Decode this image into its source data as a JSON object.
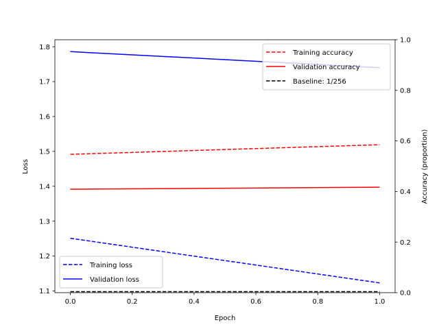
{
  "chart_data": {
    "type": "line",
    "title": "",
    "xlabel": "Epoch",
    "ylabel_left": "Loss",
    "ylabel_right": "Accuracy (proportion)",
    "xlim": [
      -0.05,
      1.05
    ],
    "ylim_left": [
      1.095,
      1.82
    ],
    "ylim_right": [
      0.0,
      1.0
    ],
    "x_ticks": [
      0.0,
      0.2,
      0.4,
      0.6,
      0.8,
      1.0
    ],
    "x_tick_labels": [
      "0.0",
      "0.2",
      "0.4",
      "0.6",
      "0.8",
      "1.0"
    ],
    "y_left_ticks": [
      1.1,
      1.2,
      1.3,
      1.4,
      1.5,
      1.6,
      1.7,
      1.8
    ],
    "y_left_tick_labels": [
      "1.1",
      "1.2",
      "1.3",
      "1.4",
      "1.5",
      "1.6",
      "1.7",
      "1.8"
    ],
    "y_right_ticks": [
      0.0,
      0.2,
      0.4,
      0.6,
      0.8,
      1.0
    ],
    "y_right_tick_labels": [
      "0.0",
      "0.2",
      "0.4",
      "0.6",
      "0.8",
      "1.0"
    ],
    "grid": false,
    "series": [
      {
        "name": "Training loss",
        "axis": "left",
        "x": [
          0,
          1
        ],
        "y": [
          1.251,
          1.123
        ],
        "color": "#0000ff",
        "style": "dashed"
      },
      {
        "name": "Validation loss",
        "axis": "left",
        "x": [
          0,
          1
        ],
        "y": [
          1.786,
          1.74
        ],
        "color": "#0000ff",
        "style": "solid"
      },
      {
        "name": "Training accuracy",
        "axis": "right",
        "x": [
          0,
          1
        ],
        "y": [
          0.547,
          0.585
        ],
        "color": "#ff0000",
        "style": "dashed"
      },
      {
        "name": "Validation accuracy",
        "axis": "right",
        "x": [
          0,
          1
        ],
        "y": [
          0.409,
          0.417
        ],
        "color": "#ff0000",
        "style": "solid"
      },
      {
        "name": "Baseline: 1/256",
        "axis": "right",
        "x": [
          0,
          1
        ],
        "y": [
          0.0039,
          0.0039
        ],
        "color": "#000000",
        "style": "dashed"
      }
    ],
    "legend_left": {
      "placement": "lower-left",
      "entries": [
        "Training loss",
        "Validation loss"
      ]
    },
    "legend_right": {
      "placement": "upper-right",
      "entries": [
        "Training accuracy",
        "Validation accuracy",
        "Baseline: 1/256"
      ]
    }
  }
}
